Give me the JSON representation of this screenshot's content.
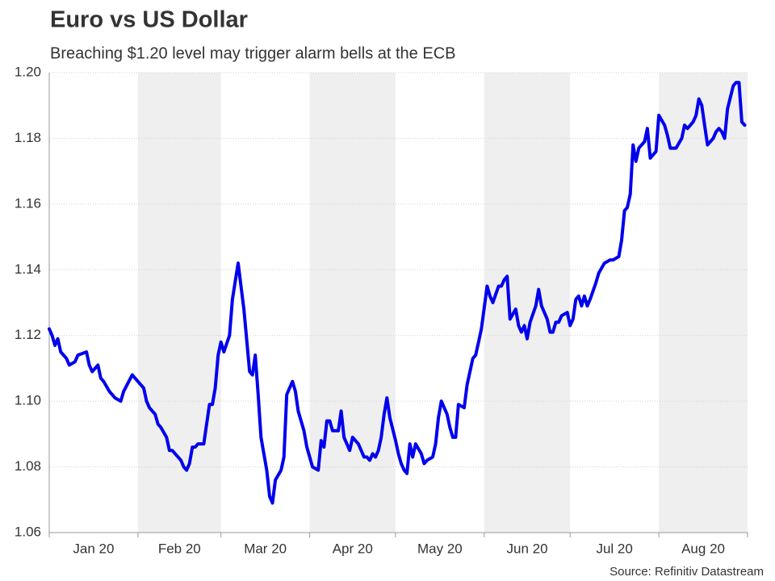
{
  "chart_data": {
    "type": "line",
    "title": "Euro vs US Dollar",
    "subtitle": "Breaching $1.20 level may trigger alarm bells at the ECB",
    "source": "Source: Refinitiv Datastream",
    "x": [
      0,
      1,
      2,
      3,
      4,
      6,
      7,
      9,
      10,
      13,
      14,
      15,
      17,
      18,
      19,
      21,
      23,
      25,
      26,
      29,
      32,
      33,
      34,
      35,
      37,
      38,
      39,
      41,
      42,
      43,
      44,
      46,
      47,
      48,
      49,
      50,
      51,
      52,
      54,
      56,
      57,
      58,
      59,
      60,
      61,
      63,
      64,
      66,
      67,
      68,
      70,
      71,
      72,
      73,
      74,
      76,
      77,
      78,
      79,
      81,
      82,
      83,
      85,
      86,
      87,
      89,
      90,
      92,
      94,
      95,
      96,
      97,
      98,
      99,
      101,
      102,
      103,
      105,
      106,
      107,
      108,
      110,
      111,
      112,
      113,
      114,
      115,
      116,
      117,
      118,
      119,
      121,
      122,
      123,
      124,
      125,
      126,
      127,
      128,
      130,
      131,
      132,
      134,
      135,
      136,
      137,
      139,
      140,
      141,
      142,
      143,
      145,
      146,
      148,
      149,
      150,
      151,
      153,
      154,
      155,
      157,
      158,
      159,
      160,
      161,
      163,
      164,
      165,
      166,
      167,
      168,
      170,
      171,
      172,
      174,
      175,
      176,
      177,
      178,
      179,
      181,
      182,
      183,
      184,
      185,
      186,
      187,
      188,
      189,
      191,
      192,
      194,
      196,
      197,
      199,
      200,
      201,
      202,
      203,
      204,
      205,
      206,
      208,
      209,
      210,
      212,
      213,
      215,
      216,
      217,
      218,
      219,
      221,
      222,
      223,
      225,
      226,
      227,
      228,
      229,
      230,
      232,
      233,
      234,
      235,
      236,
      237,
      239,
      240,
      241,
      242,
      243
    ],
    "values": [
      1.122,
      1.12,
      1.117,
      1.119,
      1.115,
      1.113,
      1.111,
      1.112,
      1.114,
      1.115,
      1.111,
      1.109,
      1.111,
      1.107,
      1.106,
      1.103,
      1.101,
      1.1,
      1.103,
      1.108,
      1.105,
      1.104,
      1.1,
      1.098,
      1.096,
      1.093,
      1.092,
      1.089,
      1.085,
      1.085,
      1.084,
      1.082,
      1.08,
      1.079,
      1.081,
      1.086,
      1.086,
      1.087,
      1.087,
      1.099,
      1.099,
      1.104,
      1.114,
      1.118,
      1.115,
      1.12,
      1.131,
      1.142,
      1.135,
      1.128,
      1.109,
      1.108,
      1.114,
      1.102,
      1.089,
      1.079,
      1.071,
      1.069,
      1.076,
      1.079,
      1.083,
      1.102,
      1.106,
      1.103,
      1.097,
      1.091,
      1.086,
      1.08,
      1.079,
      1.088,
      1.086,
      1.094,
      1.094,
      1.091,
      1.091,
      1.097,
      1.089,
      1.085,
      1.089,
      1.088,
      1.087,
      1.083,
      1.083,
      1.082,
      1.084,
      1.083,
      1.085,
      1.089,
      1.096,
      1.101,
      1.095,
      1.088,
      1.084,
      1.081,
      1.079,
      1.078,
      1.087,
      1.083,
      1.087,
      1.084,
      1.081,
      1.082,
      1.083,
      1.087,
      1.095,
      1.1,
      1.096,
      1.092,
      1.089,
      1.089,
      1.099,
      1.098,
      1.105,
      1.113,
      1.114,
      1.118,
      1.122,
      1.135,
      1.132,
      1.13,
      1.135,
      1.135,
      1.137,
      1.138,
      1.125,
      1.128,
      1.123,
      1.121,
      1.123,
      1.119,
      1.124,
      1.129,
      1.134,
      1.129,
      1.125,
      1.121,
      1.121,
      1.124,
      1.124,
      1.126,
      1.127,
      1.123,
      1.125,
      1.131,
      1.132,
      1.129,
      1.132,
      1.129,
      1.131,
      1.136,
      1.139,
      1.142,
      1.143,
      1.143,
      1.144,
      1.149,
      1.158,
      1.159,
      1.163,
      1.178,
      1.173,
      1.177,
      1.179,
      1.183,
      1.174,
      1.176,
      1.187,
      1.184,
      1.181,
      1.177,
      1.177,
      1.177,
      1.18,
      1.184,
      1.183,
      1.185,
      1.187,
      1.192,
      1.19,
      1.184,
      1.178,
      1.18,
      1.182,
      1.183,
      1.182,
      1.18,
      1.189,
      1.196,
      1.197,
      1.197,
      1.185,
      1.184
    ],
    "color": "#0000ee",
    "xlim": [
      0,
      244
    ],
    "xticks": [
      0,
      31,
      60,
      91,
      121,
      152,
      182,
      213,
      244
    ],
    "months": [
      "Jan 20",
      "Feb 20",
      "Mar 20",
      "Apr 20",
      "May 20",
      "Jun 20",
      "Jul 20",
      "Aug 20"
    ],
    "shade_alternate": true,
    "ylim": [
      1.06,
      1.2
    ],
    "yticks": [
      1.06,
      1.08,
      {
        "value": 1.1,
        "label": "1.10"
      },
      1.12,
      1.14,
      1.16,
      1.18,
      {
        "value": 1.2,
        "label": "1.20"
      }
    ],
    "grid": true
  }
}
